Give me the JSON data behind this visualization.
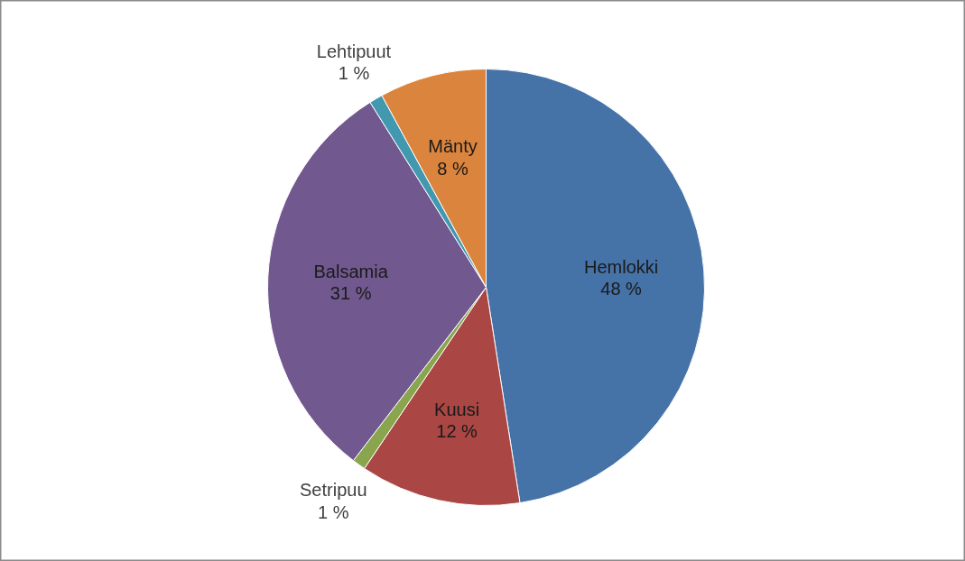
{
  "chart_data": {
    "type": "pie",
    "categories": [
      "Hemlokki",
      "Kuusi",
      "Setripuu",
      "Balsamia",
      "Lehtipuut",
      "Mänty"
    ],
    "values": [
      48,
      12,
      1,
      31,
      1,
      8
    ],
    "value_labels": [
      "48 %",
      "12 %",
      "1 %",
      "31 %",
      "1 %",
      "8 %"
    ],
    "colors": [
      "#4572a7",
      "#aa4643",
      "#89a54e",
      "#71588f",
      "#4198af",
      "#db843d"
    ]
  }
}
